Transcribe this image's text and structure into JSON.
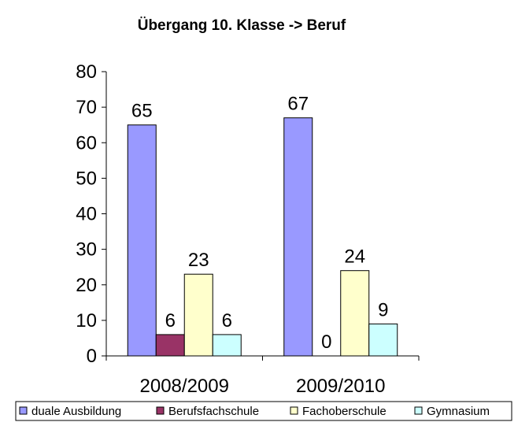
{
  "chart_data": {
    "type": "bar",
    "title": "Übergang 10. Klasse -> Beruf",
    "xlabel": "",
    "ylabel": "",
    "ylim": [
      0,
      80
    ],
    "yticks": [
      "0",
      "10",
      "20",
      "30",
      "40",
      "50",
      "60",
      "70",
      "80"
    ],
    "categories": [
      "2008/2009",
      "2009/2010"
    ],
    "series": [
      {
        "name": "duale Ausbildung",
        "color": "#9999ff",
        "values": [
          65,
          67
        ]
      },
      {
        "name": "Berufsfachschule",
        "color": "#993366",
        "values": [
          6,
          0
        ]
      },
      {
        "name": "Fachoberschule",
        "color": "#ffffcc",
        "values": [
          23,
          24
        ]
      },
      {
        "name": "Gymnasium",
        "color": "#ccffff",
        "values": [
          6,
          9
        ]
      }
    ],
    "grid": false,
    "legend_position": "bottom"
  }
}
